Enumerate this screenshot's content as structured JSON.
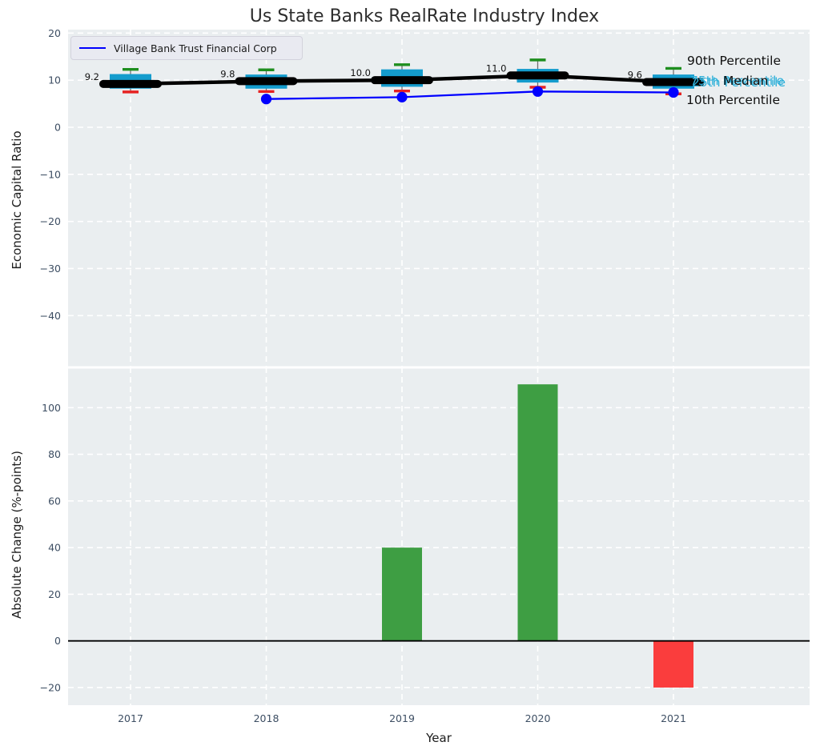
{
  "title": "Us State Banks RealRate Industry Index",
  "legend": {
    "label": "Village Bank Trust Financial Corp"
  },
  "annotations": {
    "p90": "90th Percentile",
    "p75": "75th Percentile",
    "median": "Median",
    "p25": "25th Percentile",
    "p10": "10th Percentile"
  },
  "axes": {
    "top": {
      "ylabel": "Economic Capital Ratio",
      "ytick_labels": [
        "20",
        "10",
        "0",
        "−10",
        "−20",
        "−30",
        "−40"
      ]
    },
    "bottom": {
      "ylabel": "Absolute Change (%-points)",
      "xlabel": "Year",
      "ytick_labels": [
        "100",
        "80",
        "60",
        "40",
        "20",
        "0",
        "−20"
      ],
      "xtick_labels": [
        "2017",
        "2018",
        "2019",
        "2020",
        "2021"
      ]
    }
  },
  "colors": {
    "box": "#149ccd",
    "cap_high": "#1e8e1e",
    "cap_low": "#e62222",
    "whisker": "#6e6e6e",
    "median_line": "#000000",
    "company_line": "#0000ff",
    "bar_positive": "#3e9e43",
    "bar_negative": "#fa3d3d",
    "cyan_text": "#2fb0d9",
    "plot_bg": "#eaeef0",
    "grid": "#ffffff",
    "tick": "#3d4e63",
    "zero_line": "#000000"
  },
  "chart_data": [
    {
      "type": "boxplot-line",
      "title": "Us State Banks RealRate Industry Index",
      "ylabel": "Economic Capital Ratio",
      "ylim": [
        -51,
        21
      ],
      "yticks": [
        20,
        10,
        0,
        -10,
        -20,
        -30,
        -40
      ],
      "x": [
        2017,
        2018,
        2019,
        2020,
        2021
      ],
      "industry_percentiles": {
        "p90": [
          12.3,
          12.2,
          13.3,
          14.3,
          12.5
        ],
        "p75": [
          11.3,
          11.2,
          12.3,
          12.4,
          11.2
        ],
        "median": [
          9.2,
          9.8,
          10.0,
          11.0,
          9.6
        ],
        "p25": [
          8.2,
          8.2,
          8.6,
          9.5,
          8.2
        ],
        "p10": [
          7.5,
          7.6,
          7.7,
          8.5,
          7.1
        ]
      },
      "median_labels": [
        "9.2",
        "9.8",
        "10.0",
        "11.0",
        "9.6"
      ],
      "company_series": {
        "name": "Village Bank Trust Financial Corp",
        "x": [
          2018,
          2019,
          2020,
          2021
        ],
        "values": [
          6.0,
          6.4,
          7.6,
          7.4
        ]
      },
      "legend_position": "upper left",
      "grid": true
    },
    {
      "type": "bar",
      "ylabel": "Absolute Change (%-points)",
      "xlabel": "Year",
      "ylim": [
        -28,
        117
      ],
      "yticks": [
        100,
        80,
        60,
        40,
        20,
        0,
        -20
      ],
      "categories": [
        2017,
        2018,
        2019,
        2020,
        2021
      ],
      "values": [
        null,
        null,
        40,
        110,
        -20
      ],
      "bar_color_keys": [
        null,
        null,
        "bar_positive",
        "bar_positive",
        "bar_negative"
      ],
      "grid": true
    }
  ]
}
